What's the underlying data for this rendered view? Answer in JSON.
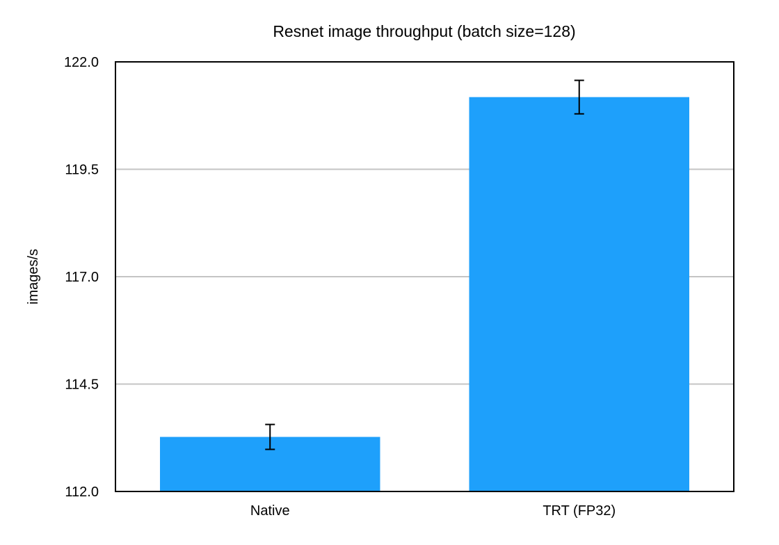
{
  "chart_data": {
    "type": "bar",
    "title": "Resnet image throughput (batch size=128)",
    "xlabel": "",
    "ylabel": "images/s",
    "categories": [
      "Native",
      "TRT (FP32)"
    ],
    "series": [
      {
        "values": [
          113.27,
          121.18
        ],
        "error": [
          0.29,
          0.39
        ]
      }
    ],
    "ylim": [
      112.0,
      122.0
    ],
    "yticks": [
      112.0,
      114.5,
      117.0,
      119.5,
      122.0
    ],
    "ytick_labels": [
      "112.0",
      "114.5",
      "117.0",
      "119.5",
      "122.0"
    ],
    "grid": true,
    "legend": "none",
    "colors": {
      "bar": "#1ea0fb",
      "grid": "#c4c4c4",
      "axis": "#000000"
    }
  }
}
